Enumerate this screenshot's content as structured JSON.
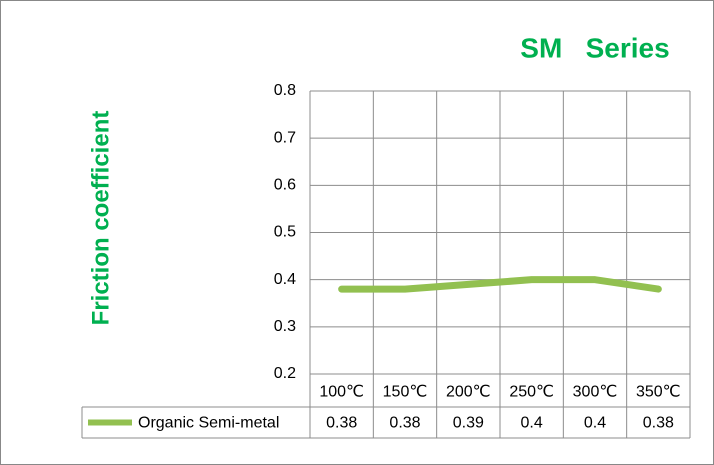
{
  "chart_data": {
    "type": "line",
    "title": "SM   Series",
    "y_label": "Friction coefficient",
    "categories": [
      "100℃",
      "150℃",
      "200℃",
      "250℃",
      "300℃",
      "350℃"
    ],
    "series": [
      {
        "name": "Organic Semi-metal",
        "color": "#92c050",
        "values": [
          0.38,
          0.38,
          0.39,
          0.4,
          0.4,
          0.38
        ]
      }
    ],
    "ylim": [
      0.2,
      0.8
    ],
    "yticks": [
      0.2,
      0.3,
      0.4,
      0.5,
      0.6,
      0.7,
      0.8
    ],
    "grid": true,
    "data_table": true
  }
}
